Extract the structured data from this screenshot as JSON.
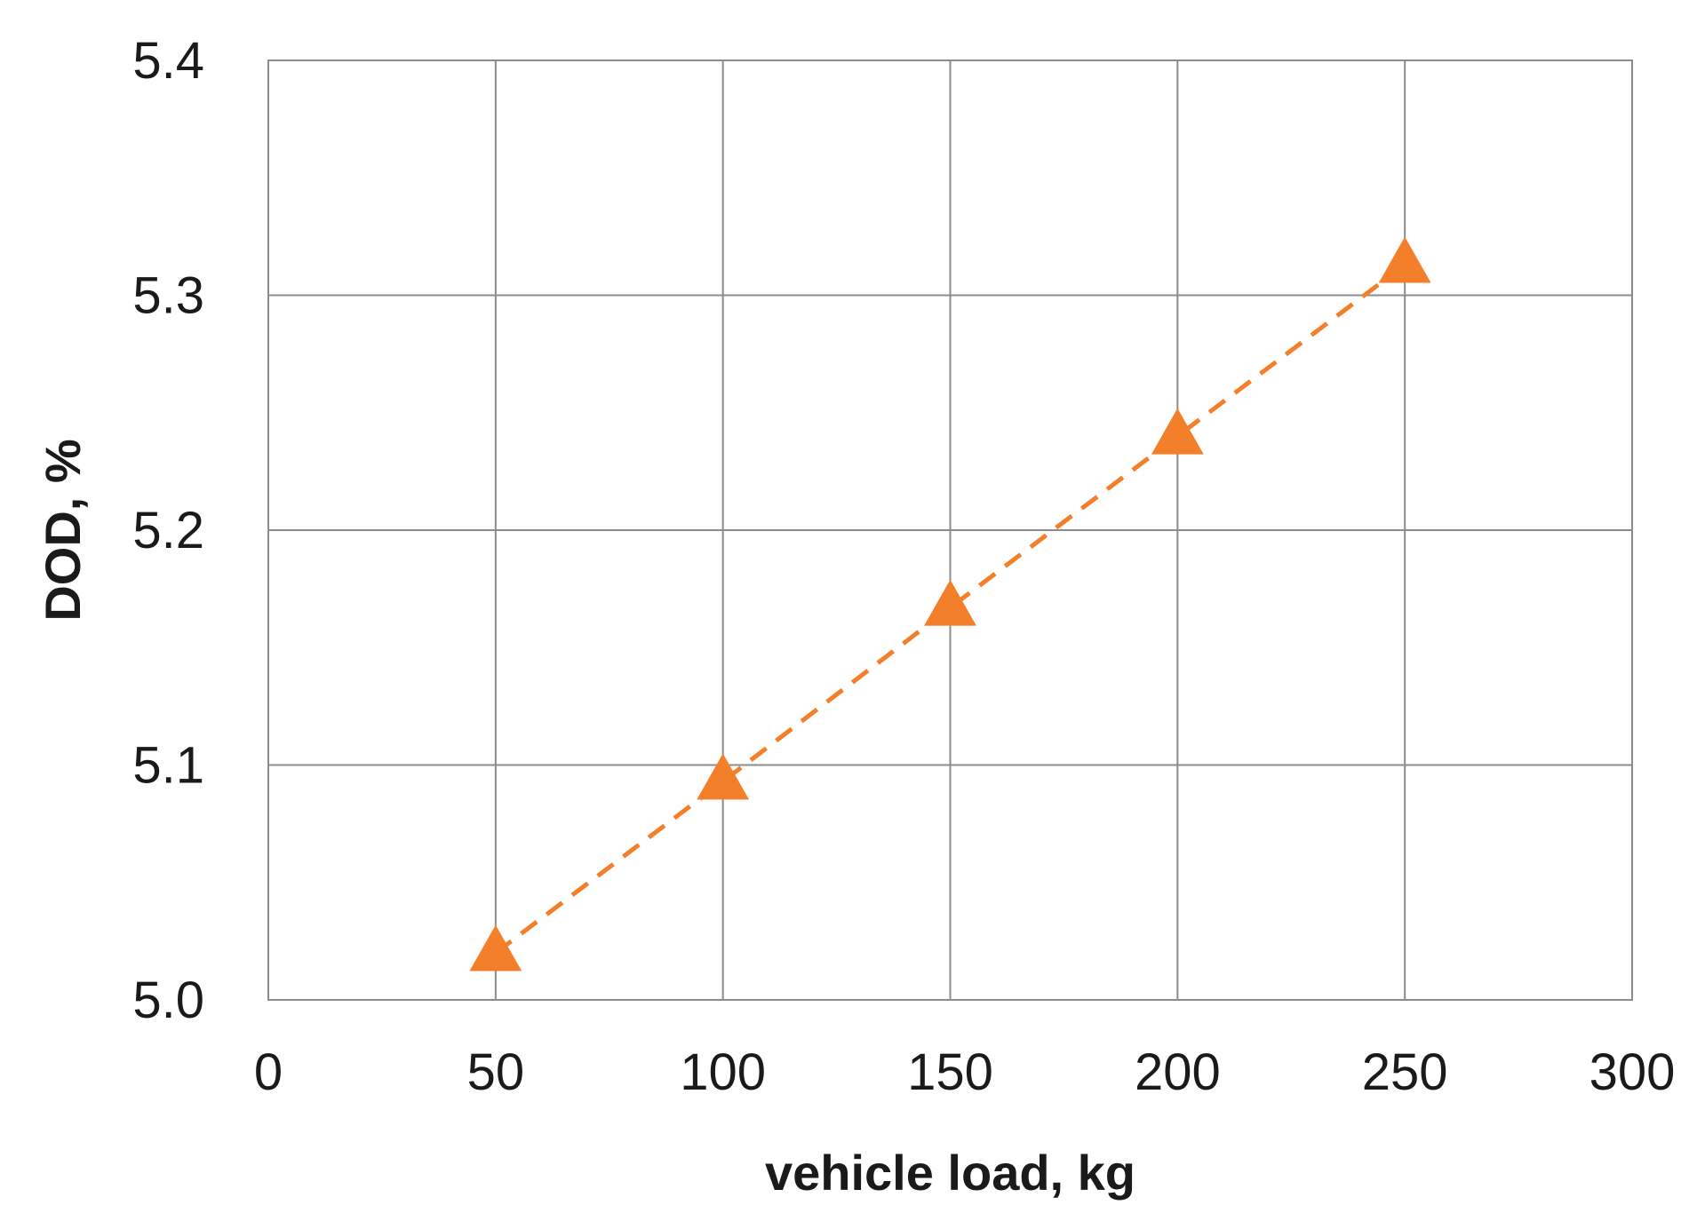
{
  "chart_data": {
    "type": "scatter",
    "xlabel": "vehicle load, kg",
    "ylabel": "DOD, %",
    "xlim": [
      0,
      300
    ],
    "ylim": [
      5.0,
      5.4
    ],
    "xticks": [
      "0",
      "50",
      "100",
      "150",
      "200",
      "250",
      "300"
    ],
    "yticks": [
      "5.0",
      "5.1",
      "5.2",
      "5.3",
      "5.4"
    ],
    "grid": true,
    "legend": "none",
    "series": [
      {
        "x": [
          50,
          100,
          150,
          200,
          250
        ],
        "y": [
          5.02,
          5.093,
          5.167,
          5.24,
          5.313
        ],
        "marker": "triangle",
        "line_style": "dashed",
        "color": "#F47F2A"
      }
    ]
  }
}
